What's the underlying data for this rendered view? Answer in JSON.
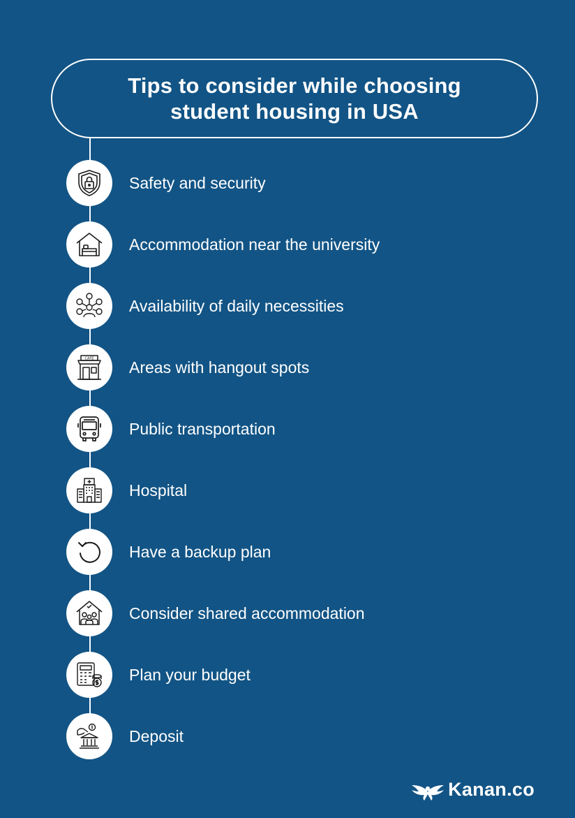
{
  "header": {
    "title_line_1": "Tips to consider while choosing",
    "title_line_2": "student housing in USA"
  },
  "tips": [
    {
      "label": "Safety and security",
      "icon": "shield-lock-icon"
    },
    {
      "label": "Accommodation near the university",
      "icon": "house-bed-icon"
    },
    {
      "label": "Availability of daily necessities",
      "icon": "person-services-icon"
    },
    {
      "label": "Areas with hangout spots",
      "icon": "cafe-icon",
      "icon_text": "CAFE"
    },
    {
      "label": "Public transportation",
      "icon": "bus-icon"
    },
    {
      "label": "Hospital",
      "icon": "hospital-icon"
    },
    {
      "label": "Have a backup plan",
      "icon": "undo-icon"
    },
    {
      "label": "Consider shared accommodation",
      "icon": "shared-house-icon"
    },
    {
      "label": "Plan your budget",
      "icon": "calculator-coins-icon"
    },
    {
      "label": "Deposit",
      "icon": "bank-deposit-icon"
    }
  ],
  "brand": {
    "name": "Kanan.co",
    "logo_icon": "wings-logo-icon"
  },
  "colors": {
    "background": "#125485",
    "foreground": "#ffffff",
    "icon_stroke": "#1a1a1a"
  }
}
